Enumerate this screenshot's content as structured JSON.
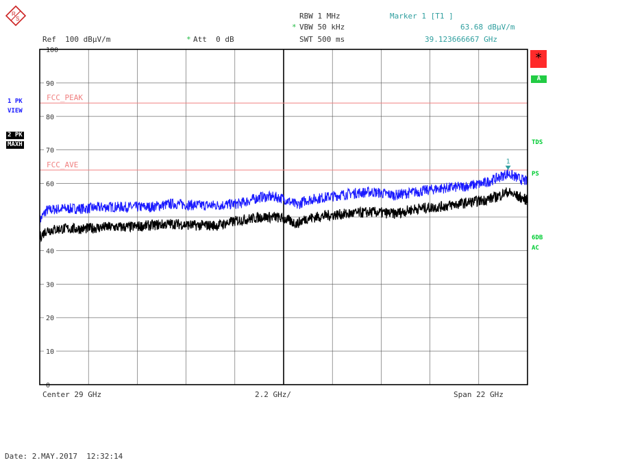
{
  "logo": {
    "text_r": "R",
    "text_s": "S"
  },
  "header": {
    "rbw": "RBW 1 MHz",
    "vbw_star": "*",
    "vbw": "VBW 50 kHz",
    "swt": "SWT 500 ms",
    "ref": "Ref  100 dBµV/m",
    "att_star": "*",
    "att": "Att  0 dB",
    "marker_title": "Marker 1 [T1 ]",
    "marker_level": "63.68 dBµV/m",
    "marker_freq": "39.123666667 GHz"
  },
  "left_labels": {
    "trace1_a": "1 PK",
    "trace1_b": "VIEW",
    "trace2_a": "2 PK",
    "trace2_b": "MAXH"
  },
  "right_labels": {
    "star": "*",
    "a": "A",
    "tds": "TDS",
    "ps": "PS",
    "sixdb": "6DB",
    "ac": "AC"
  },
  "footer": {
    "center": "Center 29 GHz",
    "per_div": "2.2 GHz/",
    "span": "Span 22 GHz",
    "date": "Date: 2.MAY.2017  12:32:14"
  },
  "colors": {
    "trace1": "#1a1aff",
    "trace2": "#000000",
    "limit": "#f08080",
    "grid": "#555555",
    "marker": "#2e9e9e",
    "red_box": "#ff2a2a",
    "green_box": "#22cc44"
  },
  "chart_data": {
    "type": "line",
    "xlim": [
      18,
      40
    ],
    "ylim": [
      0,
      100
    ],
    "y_ticks": [
      100,
      90,
      80,
      70,
      60,
      40,
      30,
      20,
      10,
      0
    ],
    "y_tick_labels": [
      "100",
      "90",
      "80",
      "70",
      "60",
      "40",
      "30",
      "20",
      "10",
      "0"
    ],
    "limit_lines": [
      {
        "name": "FCC_PEAK",
        "value": 84
      },
      {
        "name": "FCC_AVE",
        "value": 64
      }
    ],
    "series": [
      {
        "x": [
          18,
          18.3,
          19,
          20,
          21,
          22,
          23,
          24,
          25,
          26,
          27,
          28,
          28.6,
          29,
          29.6,
          30,
          31,
          32,
          33,
          34,
          35,
          36,
          37,
          38,
          38.6,
          39.1,
          39.6,
          40
        ],
        "values": [
          49,
          52,
          52.5,
          52.5,
          53,
          53,
          53,
          54,
          53.5,
          53.5,
          54,
          56,
          56,
          55.5,
          53.5,
          55,
          56,
          57,
          57.5,
          56.5,
          57.5,
          58.5,
          59,
          60,
          61.5,
          63,
          61.5,
          60.5
        ]
      },
      {
        "x": [
          18,
          18.3,
          19,
          20,
          21,
          22,
          23,
          24,
          25,
          26,
          27,
          28,
          28.6,
          29,
          29.6,
          30,
          31,
          32,
          33,
          34,
          35,
          36,
          37,
          38,
          38.6,
          39.1,
          39.6,
          40
        ],
        "values": [
          44,
          46,
          46.5,
          46.5,
          47,
          47,
          47.5,
          48,
          47.5,
          47.5,
          49,
          50,
          50,
          49.5,
          48,
          49.5,
          50.5,
          51,
          51.5,
          51,
          52.5,
          53,
          54,
          55,
          56,
          57.5,
          56,
          55
        ]
      }
    ],
    "marker": {
      "label": "1",
      "x": 39.123666667,
      "y": 63.68
    }
  }
}
